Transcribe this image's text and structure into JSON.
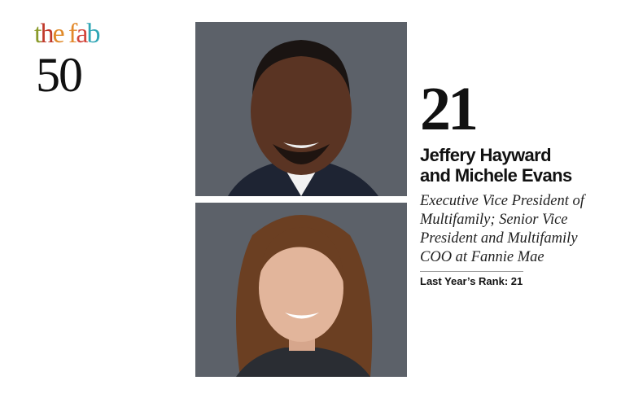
{
  "logo": {
    "line1": "the fab",
    "line2": "50",
    "letter_colors": [
      "#8a9a2a",
      "#c0392b",
      "#e08a2a",
      "#e3892c",
      "#d2463c",
      "#2fa6b5"
    ]
  },
  "entry": {
    "rank": "21",
    "names": [
      "Jeffery Hayward",
      "and Michele Evans"
    ],
    "title": "Executive Vice President of Multifamily; Senior Vice President and Multifamily COO at Fannie Mae",
    "last_year_rank": "Last Year’s Rank: 21"
  },
  "photos": {
    "background": "#5c6169"
  }
}
